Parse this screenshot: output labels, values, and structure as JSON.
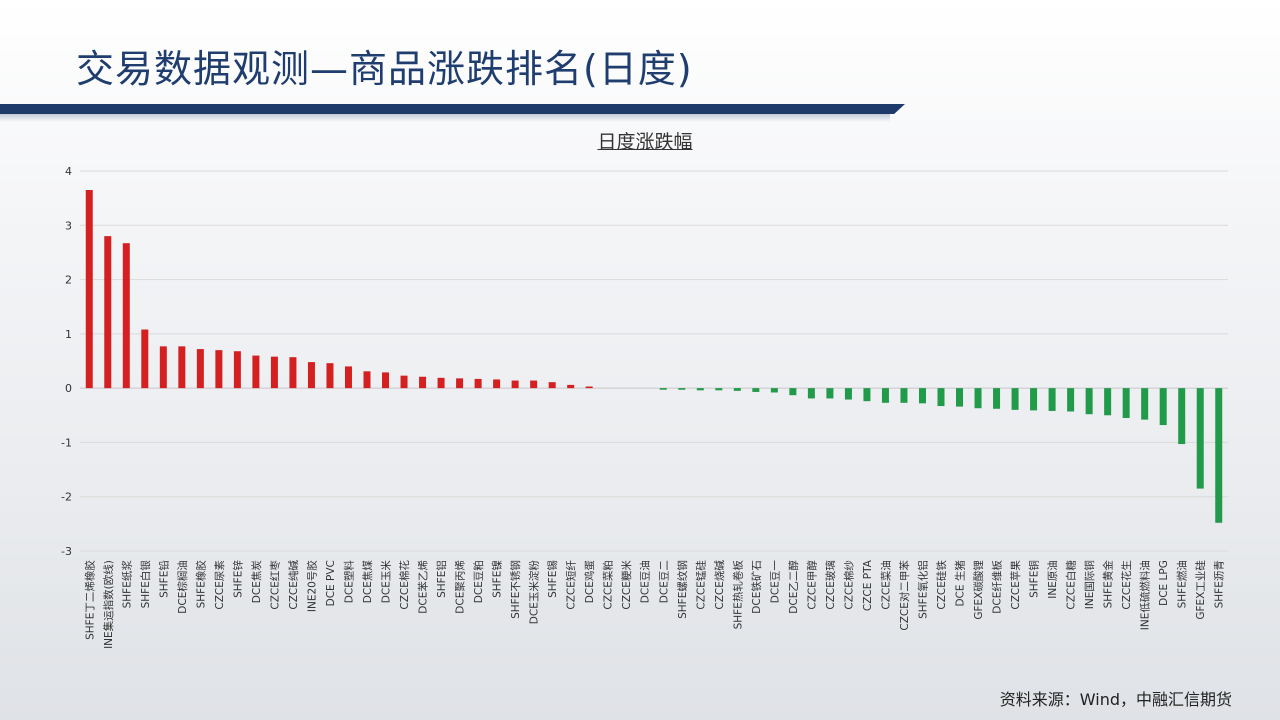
{
  "page": {
    "title": "交易数据观测—商品涨跌排名(日度)",
    "source": "资料来源：Wind，中融汇信期货"
  },
  "colors": {
    "up": "#d42020",
    "down": "#219a4a",
    "title": "#1f3d6e",
    "bar": "#1e3a6b"
  },
  "chart_data": {
    "type": "bar",
    "title": "日度涨跌幅",
    "ylim": [
      -3,
      4
    ],
    "yticks": [
      4,
      3,
      2,
      1,
      0,
      -1,
      -2,
      -3
    ],
    "grid": true,
    "categories": [
      "SHFE丁二烯橡胶",
      "INE集运指数(欧线)",
      "SHFE纸浆",
      "SHFE白银",
      "SHFE铅",
      "DCE棕榈油",
      "SHFE橡胶",
      "CZCE尿素",
      "SHFE锌",
      "DCE焦炭",
      "CZCE红枣",
      "CZCE纯碱",
      "INE20号胶",
      "DCE PVC",
      "DCE塑料",
      "DCE焦煤",
      "DCE玉米",
      "CZCE棉花",
      "DCE苯乙烯",
      "SHFE铝",
      "DCE聚丙烯",
      "DCE豆粕",
      "SHFE镍",
      "SHFE不锈钢",
      "DCE玉米淀粉",
      "SHFE锡",
      "CZCE短纤",
      "DCE鸡蛋",
      "CZCE菜粕",
      "CZCE粳米",
      "DCE豆油",
      "DCE豆二",
      "SHFE螺纹钢",
      "CZCE锰硅",
      "CZCE烧碱",
      "SHFE热轧卷板",
      "DCE铁矿石",
      "DCE豆一",
      "DCE乙二醇",
      "CZCE甲醇",
      "CZCE玻璃",
      "CZCE棉纱",
      "CZCE PTA",
      "CZCE菜油",
      "CZCE对二甲苯",
      "SHFE氧化铝",
      "CZCE硅铁",
      "DCE 生猪",
      "GFEX碳酸锂",
      "DCE纤维板",
      "CZCE苹果",
      "SHFE铜",
      "INE原油",
      "CZCE白糖",
      "INE国际铜",
      "SHFE黄金",
      "CZCE花生",
      "INE低硫燃料油",
      "DCE LPG",
      "SHFE燃油",
      "GFEX工业硅",
      "SHFE沥青"
    ],
    "values": [
      3.65,
      2.8,
      2.67,
      1.08,
      0.77,
      0.77,
      0.72,
      0.7,
      0.68,
      0.6,
      0.58,
      0.57,
      0.48,
      0.46,
      0.4,
      0.31,
      0.29,
      0.23,
      0.21,
      0.19,
      0.18,
      0.17,
      0.16,
      0.14,
      0.14,
      0.11,
      0.06,
      0.03,
      0.0,
      0.0,
      0.0,
      -0.03,
      -0.03,
      -0.04,
      -0.04,
      -0.05,
      -0.07,
      -0.08,
      -0.13,
      -0.19,
      -0.19,
      -0.21,
      -0.24,
      -0.27,
      -0.27,
      -0.28,
      -0.33,
      -0.34,
      -0.37,
      -0.38,
      -0.4,
      -0.41,
      -0.42,
      -0.43,
      -0.48,
      -0.5,
      -0.55,
      -0.58,
      -0.68,
      -1.03,
      -1.85,
      -2.48
    ]
  }
}
